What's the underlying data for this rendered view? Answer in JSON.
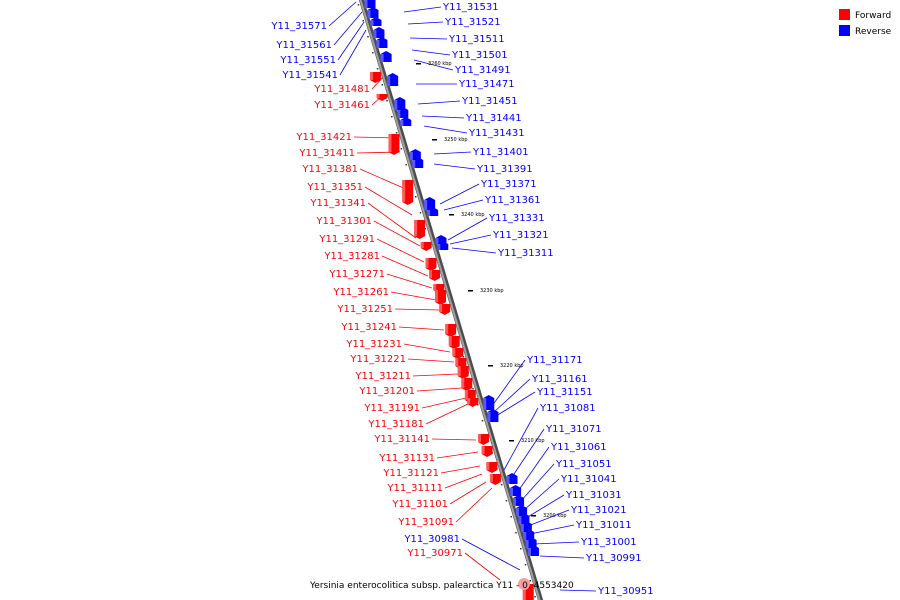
{
  "caption": "Yersinia enterocolitica subsp. palearctica Y11 - 0..4553420",
  "legend": [
    {
      "label": "Forward",
      "color": "#ff0000"
    },
    {
      "label": "Reverse",
      "color": "#0000ff"
    }
  ],
  "colors": {
    "forward": "#ff0000",
    "reverse": "#0000ff",
    "backbone": "#808080",
    "highlight": "#f4a0a0"
  },
  "ticks": [
    "3260 kbp",
    "3250 kbp",
    "3240 kbp",
    "3230 kbp",
    "3220 kbp",
    "3210 kbp",
    "3200 kbp"
  ],
  "forward_labels": [
    "Y11_31481",
    "Y11_31461",
    "Y11_31421",
    "Y11_31411",
    "Y11_31381",
    "Y11_31351",
    "Y11_31341",
    "Y11_31301",
    "Y11_31291",
    "Y11_31281",
    "Y11_31271",
    "Y11_31261",
    "Y11_31251",
    "Y11_31241",
    "Y11_31231",
    "Y11_31221",
    "Y11_31211",
    "Y11_31201",
    "Y11_31191",
    "Y11_31181",
    "Y11_31141",
    "Y11_31131",
    "Y11_31121",
    "Y11_31111",
    "Y11_31101",
    "Y11_31091",
    "Y11_30971"
  ],
  "reverse_left_labels": [
    "Y11_31571",
    "Y11_31561",
    "Y11_31551",
    "Y11_31541",
    "Y11_30981"
  ],
  "reverse_right_labels": [
    "Y11_31531",
    "Y11_31521",
    "Y11_31511",
    "Y11_31501",
    "Y11_31491",
    "Y11_31471",
    "Y11_31451",
    "Y11_31441",
    "Y11_31431",
    "Y11_31401",
    "Y11_31391",
    "Y11_31371",
    "Y11_31361",
    "Y11_31331",
    "Y11_31321",
    "Y11_31311",
    "Y11_31171",
    "Y11_31161",
    "Y11_31151",
    "Y11_31081",
    "Y11_31071",
    "Y11_31061",
    "Y11_31051",
    "Y11_31041",
    "Y11_31031",
    "Y11_31021",
    "Y11_31011",
    "Y11_31001",
    "Y11_30991",
    "Y11_30951"
  ]
}
